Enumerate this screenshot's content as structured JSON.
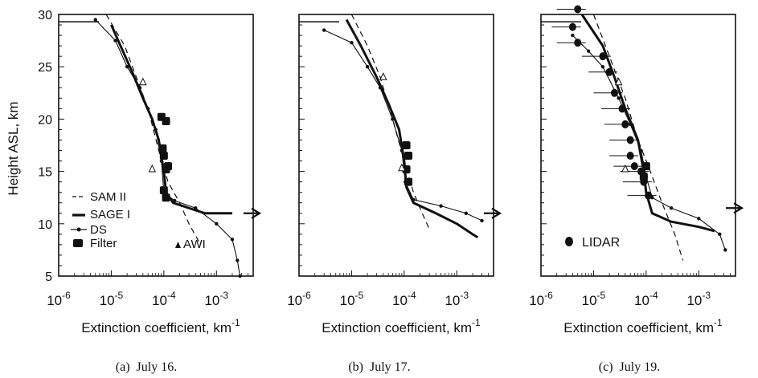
{
  "figure": {
    "y_axis_label": "Height ASL, km",
    "x_axis_label_main": "Extinction coefficient, km",
    "x_axis_label_exp": "-1",
    "x_tick_exponents": [
      "-6",
      "-5",
      "-4",
      "-3"
    ],
    "x_tick_base": "10",
    "y_tick_labels": [
      "30",
      "25",
      "20",
      "15",
      "10",
      "5"
    ]
  },
  "legend": {
    "sam2": "SAM II",
    "sage1": "SAGE I",
    "ds": "DS",
    "filter": "Filter",
    "awi": "AWI",
    "lidar": "LIDAR"
  },
  "captions": [
    "(a)  July 16.",
    "(b)  July 17.",
    "(c)  July 19."
  ],
  "chart_data": [
    {
      "type": "line",
      "title": "",
      "xlabel": "Extinction coefficient, km-1",
      "ylabel": "Height ASL, km",
      "x_scale": "log",
      "xlim": [
        1e-06,
        0.005
      ],
      "ylim": [
        5,
        30
      ],
      "series": [
        {
          "name": "SAM II",
          "style": "dashed",
          "points": [
            [
              8e-06,
              30
            ],
            [
              1.8e-05,
              27
            ],
            [
              3e-05,
              24
            ],
            [
              5e-05,
              21
            ],
            [
              8e-05,
              17
            ],
            [
              0.00012,
              14
            ],
            [
              0.0002,
              12
            ],
            [
              0.0003,
              10
            ],
            [
              0.0005,
              8
            ]
          ]
        },
        {
          "name": "SAGE I",
          "style": "thick",
          "points": [
            [
              1e-05,
              29
            ],
            [
              1.5e-05,
              27
            ],
            [
              2.5e-05,
              24.5
            ],
            [
              4e-05,
              22
            ],
            [
              6e-05,
              20
            ],
            [
              8e-05,
              18
            ],
            [
              0.0001,
              15
            ],
            [
              0.00011,
              13
            ],
            [
              0.00015,
              12
            ],
            [
              0.0003,
              11.5
            ],
            [
              0.0006,
              11
            ],
            [
              0.002,
              11
            ]
          ]
        },
        {
          "name": "DS",
          "style": "dotted-line",
          "points": [
            [
              5e-06,
              29.5
            ],
            [
              1.2e-05,
              27.5
            ],
            [
              2e-05,
              25
            ],
            [
              3.5e-05,
              23
            ],
            [
              5e-05,
              21
            ],
            [
              7e-05,
              19
            ],
            [
              9e-05,
              16
            ],
            [
              0.0001,
              13
            ],
            [
              0.00016,
              12.2
            ],
            [
              0.0004,
              11.5
            ],
            [
              0.001,
              10
            ],
            [
              0.002,
              8.5
            ],
            [
              0.0025,
              6.5
            ],
            [
              0.0028,
              5
            ]
          ]
        },
        {
          "name": "Filter",
          "style": "squares",
          "points": [
            [
              9e-05,
              20.2
            ],
            [
              0.00011,
              19.8
            ],
            [
              9.5e-05,
              17.2
            ],
            [
              0.0001,
              16.5
            ],
            [
              0.00011,
              15.2
            ],
            [
              0.00012,
              15.5
            ],
            [
              0.0001,
              13.2
            ],
            [
              0.00011,
              12.5
            ]
          ]
        },
        {
          "name": "AWI",
          "style": "triangles",
          "points": [
            [
              6e-05,
              15.2
            ],
            [
              4e-05,
              23.5
            ]
          ]
        }
      ]
    },
    {
      "type": "line",
      "title": "",
      "xlabel": "Extinction coefficient, km-1",
      "ylabel": "",
      "x_scale": "log",
      "xlim": [
        1e-06,
        0.005
      ],
      "ylim": [
        5,
        30
      ],
      "series": [
        {
          "name": "SAM II",
          "style": "dashed",
          "points": [
            [
              1e-05,
              30
            ],
            [
              2e-05,
              27
            ],
            [
              3.5e-05,
              24
            ],
            [
              6e-05,
              20
            ],
            [
              0.0001,
              16
            ],
            [
              0.00015,
              13
            ],
            [
              0.00022,
              11
            ],
            [
              0.0003,
              9.5
            ]
          ]
        },
        {
          "name": "SAGE I",
          "style": "thick",
          "points": [
            [
              8e-06,
              29.5
            ],
            [
              1.5e-05,
              27
            ],
            [
              3e-05,
              24
            ],
            [
              5e-05,
              21.5
            ],
            [
              8e-05,
              19
            ],
            [
              0.0001,
              16
            ],
            [
              0.00011,
              13.5
            ],
            [
              0.00015,
              12
            ],
            [
              0.0004,
              11
            ],
            [
              0.001,
              10
            ],
            [
              0.002,
              9
            ],
            [
              0.0025,
              8.7
            ]
          ]
        },
        {
          "name": "DS",
          "style": "dotted-line",
          "points": [
            [
              3e-06,
              28.5
            ],
            [
              1e-05,
              27.3
            ],
            [
              2e-05,
              25
            ],
            [
              3.5e-05,
              23
            ],
            [
              6e-05,
              20
            ],
            [
              9e-05,
              17
            ],
            [
              0.000105,
              14
            ],
            [
              0.00015,
              12.3
            ],
            [
              0.0005,
              11.7
            ],
            [
              0.0015,
              11
            ],
            [
              0.003,
              10.3
            ]
          ]
        },
        {
          "name": "Filter",
          "style": "squares",
          "points": [
            [
              0.00011,
              17.5
            ],
            [
              0.00012,
              16.5
            ],
            [
              0.00011,
              15.2
            ],
            [
              0.00012,
              14
            ]
          ]
        },
        {
          "name": "AWI",
          "style": "triangles",
          "points": [
            [
              9e-05,
              15.3
            ],
            [
              4e-05,
              24
            ]
          ]
        }
      ]
    },
    {
      "type": "line",
      "title": "",
      "xlabel": "Extinction coefficient, km-1",
      "ylabel": "",
      "x_scale": "log",
      "xlim": [
        1e-06,
        0.005
      ],
      "ylim": [
        5,
        30
      ],
      "series": [
        {
          "name": "SAM II",
          "style": "dashed",
          "points": [
            [
              1e-05,
              30
            ],
            [
              2e-05,
              26
            ],
            [
              4e-05,
              22
            ],
            [
              7e-05,
              18
            ],
            [
              0.00012,
              15
            ],
            [
              0.0002,
              12
            ],
            [
              0.00035,
              9
            ],
            [
              0.0005,
              6.5
            ]
          ]
        },
        {
          "name": "SAGE I",
          "style": "thick",
          "points": [
            [
              6e-06,
              30
            ],
            [
              1.5e-05,
              27
            ],
            [
              2.5e-05,
              24
            ],
            [
              4e-05,
              21
            ],
            [
              7e-05,
              18
            ],
            [
              9e-05,
              15
            ],
            [
              0.0001,
              13
            ],
            [
              0.00013,
              11
            ],
            [
              0.0003,
              10.2
            ],
            [
              0.001,
              9.7
            ],
            [
              0.002,
              9.3
            ]
          ]
        },
        {
          "name": "DS",
          "style": "dotted-line",
          "points": [
            [
              4e-06,
              28
            ],
            [
              8e-06,
              26.5
            ],
            [
              1.5e-05,
              25
            ],
            [
              3e-05,
              22
            ],
            [
              5e-05,
              19.5
            ],
            [
              8e-05,
              17
            ],
            [
              0.0001,
              14.5
            ],
            [
              0.00013,
              12.5
            ],
            [
              0.0003,
              11.5
            ],
            [
              0.001,
              10.5
            ],
            [
              0.0025,
              9
            ],
            [
              0.0032,
              7.5
            ]
          ]
        },
        {
          "name": "LIDAR",
          "style": "dots",
          "points": [
            [
              5e-06,
              30.5
            ],
            [
              4e-06,
              28.8
            ],
            [
              5e-06,
              27.3
            ],
            [
              1.5e-05,
              26
            ],
            [
              2e-05,
              24.5
            ],
            [
              2.5e-05,
              22.5
            ],
            [
              3.5e-05,
              21
            ],
            [
              4e-05,
              19.5
            ],
            [
              5e-05,
              18
            ],
            [
              5e-05,
              16.5
            ],
            [
              6e-05,
              15.5
            ],
            [
              8e-05,
              15
            ],
            [
              9e-05,
              14
            ],
            [
              0.00011,
              12.7
            ]
          ]
        },
        {
          "name": "Filter",
          "style": "squares",
          "points": [
            [
              0.0001,
              15.5
            ],
            [
              9e-05,
              14.5
            ]
          ]
        },
        {
          "name": "AWI",
          "style": "triangles",
          "points": [
            [
              4e-05,
              15.2
            ],
            [
              3e-05,
              23.5
            ]
          ]
        }
      ]
    }
  ]
}
